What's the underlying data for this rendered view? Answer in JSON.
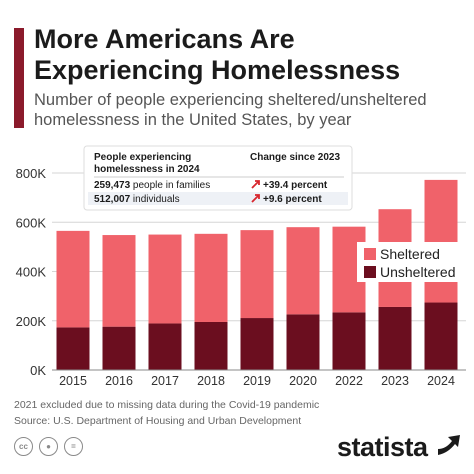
{
  "header": {
    "title": "More Americans Are Experiencing Homelessness",
    "subtitle": "Number of people experiencing sheltered/unsheltered homelessness in the United States, by year"
  },
  "chart_data": {
    "type": "bar",
    "stacked": true,
    "categories": [
      "2015",
      "2016",
      "2017",
      "2018",
      "2019",
      "2020",
      "2022",
      "2023",
      "2024"
    ],
    "series": [
      {
        "name": "Unsheltered",
        "color": "#6b0e1f",
        "values": [
          173000,
          176000,
          189000,
          195000,
          211000,
          226000,
          234000,
          256000,
          274000
        ]
      },
      {
        "name": "Sheltered",
        "color": "#f0626a",
        "values": [
          392000,
          372000,
          361000,
          358000,
          357000,
          354000,
          348000,
          397000,
          498000
        ]
      }
    ],
    "y_ticks": [
      "0K",
      "200K",
      "400K",
      "600K",
      "800K"
    ],
    "ylim": [
      0,
      800000
    ],
    "grid": true,
    "legend_position": "right",
    "inset_table": {
      "col1_header": "People experiencing homelessness in 2024",
      "col2_header": "Change since 2023",
      "rows": [
        {
          "value": "259,473",
          "label": "people in families",
          "change": "+39.4 percent"
        },
        {
          "value": "512,007",
          "label": "individuals",
          "change": "+9.6 percent"
        }
      ]
    }
  },
  "footer": {
    "note": "2021 excluded due to missing data during the Covid-19 pandemic",
    "source": "Source: U.S. Department of Housing and Urban Development",
    "logo": "statista",
    "icons": [
      "cc-icon",
      "person-icon",
      "equals-icon"
    ]
  },
  "colors": {
    "accent": "#8b1a2b",
    "sheltered": "#f0626a",
    "unsheltered": "#6b0e1f",
    "arrow": "#d7262d"
  }
}
